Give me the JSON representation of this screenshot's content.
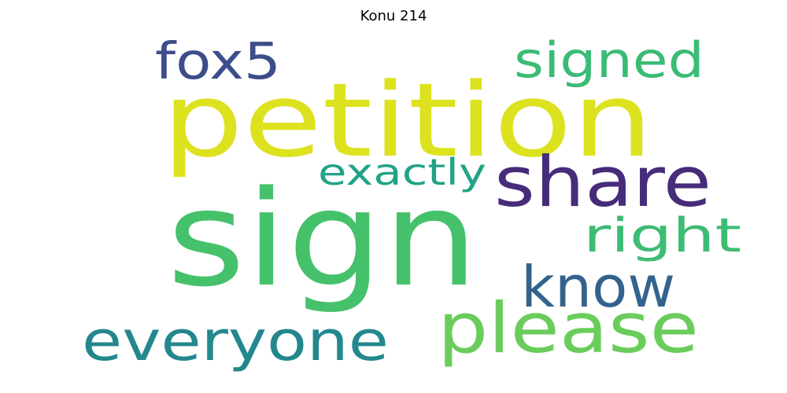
{
  "title": "Konu 214",
  "words": [
    {
      "text": "petition",
      "color": "#dde21f"
    },
    {
      "text": "sign",
      "color": "#46c16b"
    },
    {
      "text": "share",
      "color": "#472c7a"
    },
    {
      "text": "please",
      "color": "#6acd5b"
    },
    {
      "text": "everyone",
      "color": "#24878e"
    },
    {
      "text": "know",
      "color": "#33638d"
    },
    {
      "text": "signed",
      "color": "#3bbb75"
    },
    {
      "text": "fox5",
      "color": "#3d4d8a"
    },
    {
      "text": "right",
      "color": "#3dbc74"
    },
    {
      "text": "exactly",
      "color": "#20a386"
    }
  ]
}
